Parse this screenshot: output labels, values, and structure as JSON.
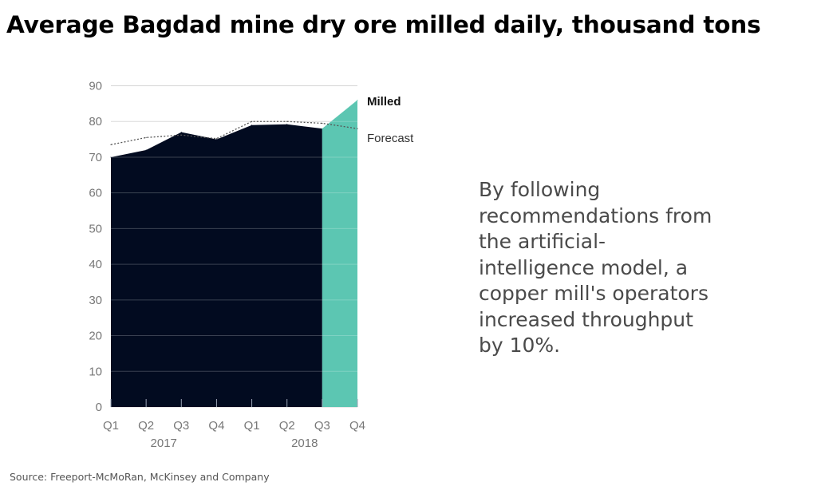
{
  "title": "Average Bagdad mine dry ore milled daily, thousand tons",
  "callout": "By following recommendations from the artificial-intelligence model, a copper mill's operators increased throughput by 10%.",
  "source": "Source: Freeport-McMoRan, McKinsey and Company",
  "chart_data": {
    "type": "area",
    "categories": [
      "Q1",
      "Q2",
      "Q3",
      "Q4",
      "Q1",
      "Q2",
      "Q3",
      "Q4"
    ],
    "year_groups": [
      {
        "label": "2017",
        "quarters": [
          0,
          1,
          2,
          3
        ]
      },
      {
        "label": "2018",
        "quarters": [
          4,
          5,
          6,
          7
        ]
      }
    ],
    "y_ticks": [
      0,
      10,
      20,
      30,
      40,
      50,
      60,
      70,
      80,
      90
    ],
    "ylim": [
      0,
      90
    ],
    "grid": true,
    "series": [
      {
        "name": "Milled",
        "values": [
          70,
          72,
          77,
          75,
          79,
          79.2,
          78,
          86
        ],
        "highlight_from_index": 6
      },
      {
        "name": "Forecast",
        "values": [
          73.5,
          75.5,
          76.2,
          75.2,
          80,
          80,
          79.5,
          78
        ],
        "style": "dotted"
      }
    ],
    "colors": {
      "milled": "#020b20",
      "highlight": "#5cc6b2",
      "forecast": "#555555",
      "grid": "#d4d4d4"
    }
  }
}
